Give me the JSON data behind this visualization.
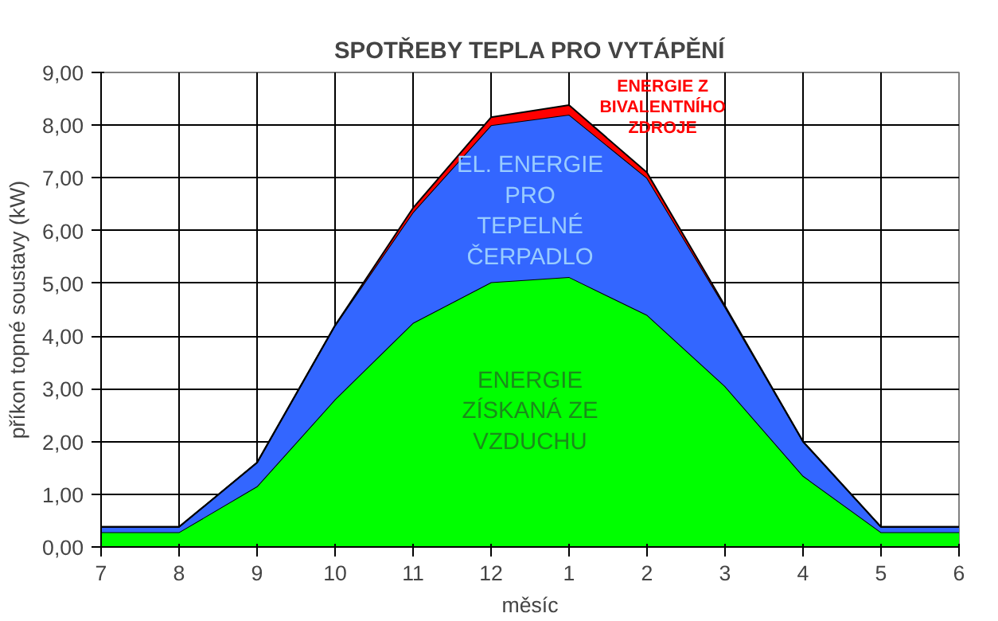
{
  "chart_data": {
    "type": "area",
    "stacked": true,
    "title": "SPOTŘEBY TEPLA PRO VYTÁPĚNÍ",
    "xlabel": "měsíc",
    "ylabel": "příkon topné soustavy (kW)",
    "categories": [
      "7",
      "8",
      "9",
      "10",
      "11",
      "12",
      "1",
      "2",
      "3",
      "4",
      "5",
      "6"
    ],
    "series": [
      {
        "name": "ENERGIE ZÍSKANÁ ZE VZDUCHU",
        "color": "#00ff00",
        "values": [
          0.28,
          0.28,
          1.15,
          2.8,
          4.25,
          5.02,
          5.12,
          4.4,
          3.05,
          1.35,
          0.28,
          0.28
        ]
      },
      {
        "name": "EL. ENERGIE PRO TEPELNÉ ČERPADLO",
        "color": "#3366ff",
        "values": [
          0.1,
          0.1,
          0.45,
          1.4,
          2.1,
          2.98,
          3.08,
          2.6,
          1.5,
          0.65,
          0.1,
          0.1
        ]
      },
      {
        "name": "ENERGIE Z BIVALENTNÍHO ZDROJE",
        "color": "#ff0000",
        "values": [
          0,
          0,
          0,
          0,
          0.08,
          0.15,
          0.18,
          0.1,
          0.02,
          0,
          0,
          0
        ]
      }
    ],
    "ylim": [
      0,
      9
    ],
    "yticks": [
      {
        "value": 0,
        "label": "0,00"
      },
      {
        "value": 1,
        "label": "1,00"
      },
      {
        "value": 2,
        "label": "2,00"
      },
      {
        "value": 3,
        "label": "3,00"
      },
      {
        "value": 4,
        "label": "4,00"
      },
      {
        "value": 5,
        "label": "5,00"
      },
      {
        "value": 6,
        "label": "6,00"
      },
      {
        "value": 7,
        "label": "7,00"
      },
      {
        "value": 8,
        "label": "8,00"
      },
      {
        "value": 9,
        "label": "9,00"
      }
    ],
    "grid": true
  }
}
